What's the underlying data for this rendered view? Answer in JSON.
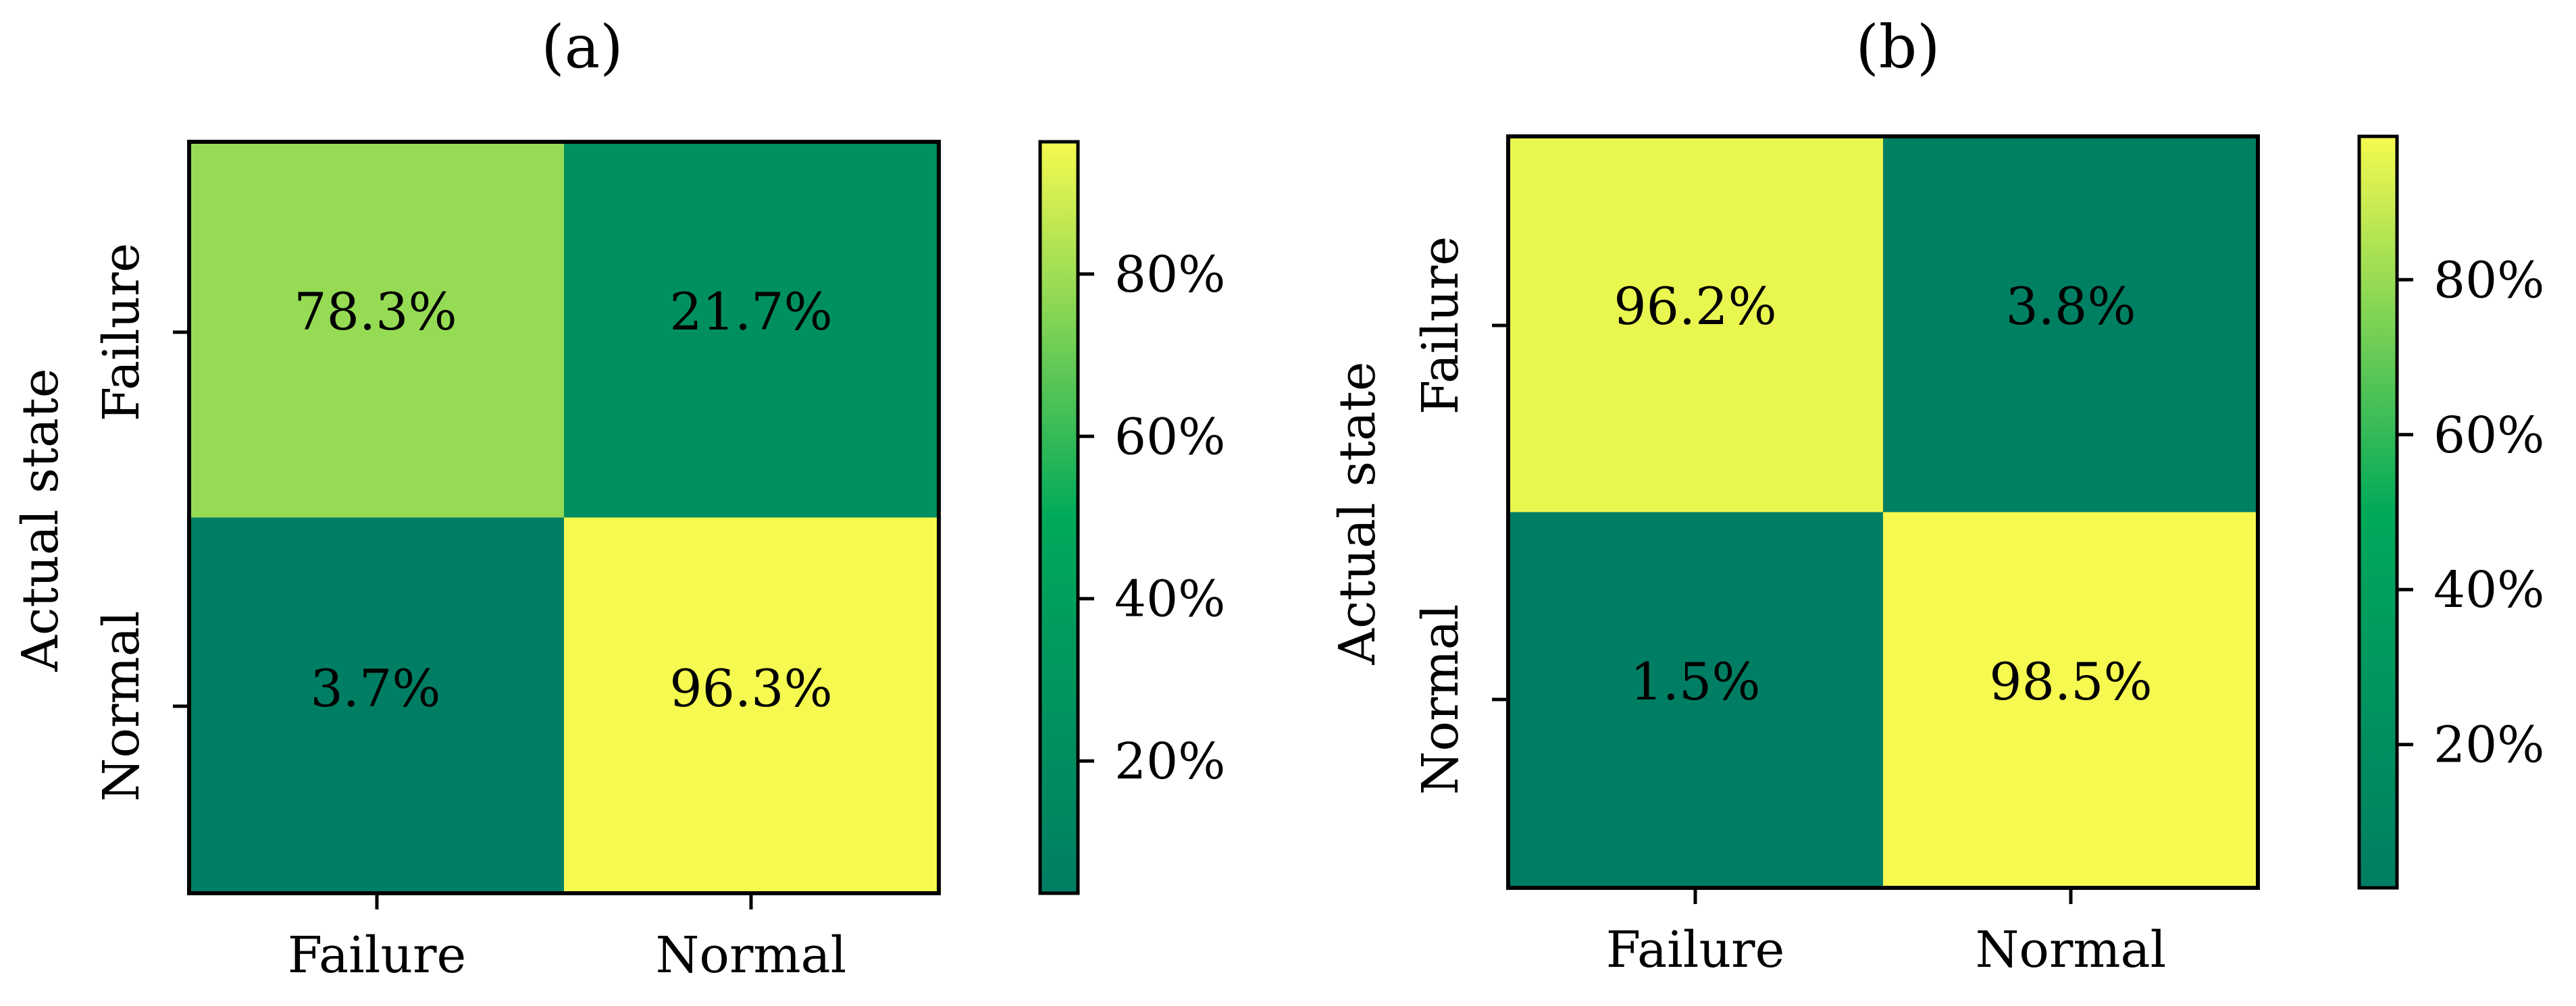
{
  "chart_data": [
    {
      "type": "heatmap",
      "title": "(a)",
      "ylabel": "Actual state",
      "xlabel": "",
      "x_categories": [
        "Failure",
        "Normal"
      ],
      "y_categories": [
        "Failure",
        "Normal"
      ],
      "values": [
        [
          78.3,
          21.7
        ],
        [
          3.7,
          96.3
        ]
      ],
      "cell_labels": [
        [
          "78.3%",
          "21.7%"
        ],
        [
          "3.7%",
          "96.3%"
        ]
      ],
      "colorbar": {
        "min": 3.7,
        "max": 96.3,
        "ticks": [
          20,
          40,
          60,
          80
        ],
        "tick_labels": [
          "20%",
          "40%",
          "60%",
          "80%"
        ]
      }
    },
    {
      "type": "heatmap",
      "title": "(b)",
      "ylabel": "Actual state",
      "xlabel": "",
      "x_categories": [
        "Failure",
        "Normal"
      ],
      "y_categories": [
        "Failure",
        "Normal"
      ],
      "values": [
        [
          96.2,
          3.8
        ],
        [
          1.5,
          98.5
        ]
      ],
      "cell_labels": [
        [
          "96.2%",
          "3.8%"
        ],
        [
          "1.5%",
          "98.5%"
        ]
      ],
      "colorbar": {
        "min": 1.5,
        "max": 98.5,
        "ticks": [
          20,
          40,
          60,
          80
        ],
        "tick_labels": [
          "20%",
          "40%",
          "60%",
          "80%"
        ]
      }
    }
  ],
  "colormap": [
    "#007e63",
    "#00a95a",
    "#f6fa50"
  ]
}
